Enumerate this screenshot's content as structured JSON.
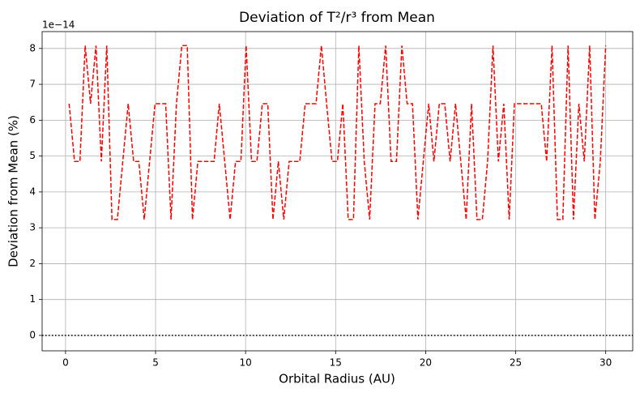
{
  "chart_data": {
    "type": "line",
    "title": "Deviation of T²/r³ from Mean",
    "xlabel": "Orbital Radius (AU)",
    "ylabel": "Deviation from Mean (%)",
    "offset_text": "1e−14",
    "x": [
      0.2,
      0.5,
      0.8,
      1.09,
      1.39,
      1.69,
      1.99,
      2.29,
      2.58,
      2.88,
      3.18,
      3.48,
      3.78,
      4.07,
      4.37,
      4.67,
      4.97,
      5.27,
      5.56,
      5.86,
      6.16,
      6.46,
      6.76,
      7.05,
      7.35,
      7.65,
      7.95,
      8.25,
      8.54,
      8.84,
      9.14,
      9.44,
      9.74,
      10.03,
      10.33,
      10.63,
      10.93,
      11.23,
      11.52,
      11.82,
      12.12,
      12.42,
      12.72,
      13.01,
      13.31,
      13.61,
      13.91,
      14.21,
      14.5,
      14.8,
      15.1,
      15.4,
      15.7,
      15.99,
      16.29,
      16.59,
      16.89,
      17.19,
      17.48,
      17.78,
      18.08,
      18.38,
      18.68,
      18.97,
      19.27,
      19.57,
      19.87,
      20.17,
      20.46,
      20.76,
      21.06,
      21.36,
      21.66,
      21.95,
      22.25,
      22.55,
      22.85,
      23.15,
      23.44,
      23.74,
      24.04,
      24.34,
      24.64,
      24.93,
      25.23,
      25.53,
      25.83,
      26.13,
      26.42,
      26.72,
      27.02,
      27.32,
      27.62,
      27.91,
      28.21,
      28.51,
      28.81,
      29.11,
      29.4,
      29.7,
      30
    ],
    "series": [
      {
        "color": "#ff0000",
        "style": "dashed",
        "values": [
          6.46,
          4.85,
          4.85,
          8.08,
          6.46,
          8.08,
          4.85,
          8.08,
          3.23,
          3.23,
          4.85,
          6.46,
          4.85,
          4.85,
          3.23,
          4.85,
          6.46,
          6.46,
          6.46,
          3.23,
          6.46,
          8.08,
          8.08,
          3.23,
          4.85,
          4.85,
          4.85,
          4.85,
          6.46,
          4.85,
          3.23,
          4.85,
          4.85,
          8.08,
          4.85,
          4.85,
          6.46,
          6.46,
          3.23,
          4.85,
          3.23,
          4.85,
          4.85,
          4.85,
          6.46,
          6.46,
          6.46,
          8.08,
          6.46,
          4.85,
          4.85,
          6.46,
          3.23,
          3.23,
          8.08,
          4.85,
          3.23,
          6.46,
          6.46,
          8.08,
          4.85,
          4.85,
          8.08,
          6.46,
          6.46,
          3.23,
          4.85,
          6.46,
          4.85,
          6.46,
          6.46,
          4.85,
          6.46,
          4.85,
          3.23,
          6.46,
          3.23,
          3.23,
          4.85,
          8.08,
          4.85,
          6.46,
          3.23,
          6.46,
          6.46,
          6.46,
          6.46,
          6.46,
          6.46,
          4.85,
          8.08,
          3.23,
          3.23,
          8.08,
          3.23,
          6.46,
          4.85,
          8.08,
          3.23,
          4.85,
          8.08
        ]
      }
    ],
    "hline": 0,
    "hline_color": "#000000",
    "xlim": [
      -1.3,
      31.5
    ],
    "xticks": [
      0,
      5,
      10,
      15,
      20,
      25,
      30
    ],
    "ylim": [
      -0.43,
      8.47
    ],
    "yticks": [
      0,
      1,
      2,
      3,
      4,
      5,
      6,
      7,
      8
    ],
    "grid": true
  }
}
